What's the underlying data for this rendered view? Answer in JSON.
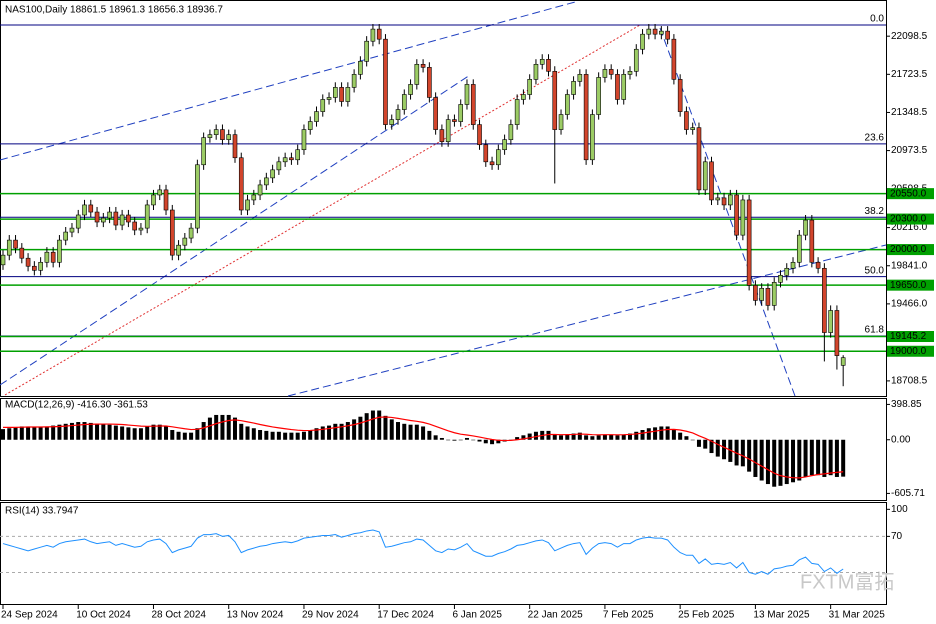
{
  "watermark": "FXTM富拓",
  "chart_data": [
    {
      "type": "candlestick",
      "title": "NAS100,Daily  18861.5 18961.3 18656.3 18936.7",
      "categories": [
        "24 Sep 2024",
        null,
        null,
        null,
        null,
        null,
        null,
        null,
        null,
        null,
        null,
        null,
        "10 Oct 2024",
        null,
        null,
        null,
        null,
        null,
        null,
        null,
        null,
        null,
        null,
        null,
        "28 Oct 2024",
        null,
        null,
        null,
        null,
        null,
        null,
        null,
        null,
        null,
        null,
        null,
        "13 Nov 2024",
        null,
        null,
        null,
        null,
        null,
        null,
        null,
        null,
        null,
        null,
        null,
        "29 Nov 2024",
        null,
        null,
        null,
        null,
        null,
        null,
        null,
        null,
        null,
        null,
        null,
        "17 Dec 2024",
        null,
        null,
        null,
        null,
        null,
        null,
        null,
        null,
        null,
        null,
        null,
        "6 Jan 2025",
        null,
        null,
        null,
        null,
        null,
        null,
        null,
        null,
        null,
        null,
        null,
        "22 Jan 2025",
        null,
        null,
        null,
        null,
        null,
        null,
        null,
        null,
        null,
        null,
        null,
        "7 Feb 2025",
        null,
        null,
        null,
        null,
        null,
        null,
        null,
        null,
        null,
        null,
        null,
        "25 Feb 2025",
        null,
        null,
        null,
        null,
        null,
        null,
        null,
        null,
        null,
        null,
        null,
        "13 Mar 2025",
        null,
        null,
        null,
        null,
        null,
        null,
        null,
        null,
        null,
        null,
        null,
        "31 Mar 2025",
        null,
        null
      ],
      "open": [
        19850,
        19945,
        20093,
        20014,
        19915,
        19836,
        19796,
        19875,
        19974,
        19875,
        20093,
        20172,
        20211,
        20340,
        20439,
        20369,
        20271,
        20310,
        20369,
        20241,
        20340,
        20271,
        20192,
        20211,
        20439,
        20537,
        20587,
        20389,
        19945,
        20043,
        20113,
        20211,
        20834,
        21101,
        21130,
        21180,
        21081,
        21130,
        20903,
        20389,
        20488,
        20537,
        20636,
        20705,
        20784,
        20863,
        20903,
        20883,
        20982,
        21180,
        21259,
        21357,
        21476,
        21496,
        21595,
        21456,
        21595,
        21723,
        21851,
        22049,
        22168,
        22069,
        21229,
        21278,
        21377,
        21525,
        21624,
        21822,
        21792,
        21496,
        21180,
        21061,
        21278,
        21259,
        21427,
        21624,
        21229,
        21031,
        20863,
        20834,
        20982,
        21081,
        21229,
        21476,
        21525,
        21674,
        21822,
        21871,
        21753,
        21180,
        21328,
        21525,
        21654,
        21723,
        20883,
        21328,
        21693,
        21772,
        21723,
        21476,
        21723,
        21753,
        21970,
        22118,
        22168,
        22118,
        22148,
        22069,
        21674,
        21357,
        21180,
        21199,
        20587,
        20863,
        20488,
        20508,
        20439,
        20537,
        20142,
        20488,
        19648,
        19500,
        19619,
        19451,
        19678,
        19747,
        19816,
        19875,
        20142,
        20290,
        19875,
        19816,
        19184,
        19401,
        18861.5
      ],
      "high": [
        19995,
        20143,
        20143,
        20064,
        19965,
        19886,
        19925,
        20024,
        20024,
        20143,
        20222,
        20261,
        20390,
        20489,
        20489,
        20419,
        20360,
        20419,
        20419,
        20390,
        20390,
        20321,
        20261,
        20489,
        20587,
        20637,
        20637,
        20439,
        20093,
        20163,
        20261,
        20884,
        21151,
        21180,
        21230,
        21230,
        21180,
        21180,
        20953,
        20538,
        20587,
        20686,
        20755,
        20834,
        20913,
        20953,
        20953,
        21032,
        21230,
        21309,
        21407,
        21526,
        21546,
        21645,
        21645,
        21645,
        21773,
        21901,
        22099,
        22218,
        22218,
        22119,
        21328,
        21427,
        21575,
        21674,
        21872,
        21872,
        21842,
        21546,
        21230,
        21328,
        21328,
        21477,
        21674,
        21674,
        21279,
        21081,
        20913,
        21032,
        21131,
        21279,
        21526,
        21575,
        21724,
        21872,
        21921,
        21921,
        21803,
        21378,
        21575,
        21704,
        21773,
        21773,
        21378,
        21743,
        21822,
        21822,
        21773,
        21773,
        21803,
        22020,
        22168,
        22218,
        22218,
        22198,
        22198,
        22119,
        21724,
        21407,
        21249,
        21249,
        20913,
        20913,
        20558,
        20558,
        20587,
        20587,
        20538,
        20538,
        19698,
        19669,
        19669,
        19728,
        19797,
        19866,
        19925,
        20192,
        20340,
        20340,
        19925,
        19866,
        19451,
        19451,
        18961.3
      ],
      "low": [
        19800,
        19895,
        19964,
        19865,
        19786,
        19746,
        19746,
        19825,
        19825,
        19825,
        20043,
        20122,
        20161,
        20290,
        20319,
        20221,
        20221,
        20260,
        20191,
        20191,
        20221,
        20142,
        20142,
        20161,
        20389,
        20487,
        20339,
        19895,
        19895,
        19993,
        20063,
        20161,
        20784,
        21051,
        21080,
        21031,
        21031,
        20853,
        20339,
        20339,
        20438,
        20487,
        20586,
        20655,
        20734,
        20813,
        20833,
        20833,
        20932,
        21130,
        21209,
        21307,
        21426,
        21446,
        21406,
        21406,
        21545,
        21673,
        21801,
        21999,
        22019,
        21179,
        21179,
        21228,
        21327,
        21475,
        21574,
        21742,
        21446,
        21130,
        21011,
        21011,
        21209,
        21209,
        21377,
        21179,
        20981,
        20813,
        20784,
        20784,
        20932,
        21031,
        21179,
        21426,
        21475,
        21624,
        21772,
        21703,
        20650,
        21130,
        21278,
        21475,
        21604,
        20833,
        20833,
        21278,
        21643,
        21673,
        21426,
        21426,
        21673,
        21703,
        21920,
        22068,
        22068,
        22068,
        22019,
        21624,
        21307,
        21130,
        21130,
        20537,
        20537,
        20438,
        20438,
        20389,
        20389,
        20092,
        20092,
        19598,
        19450,
        19450,
        19401,
        19401,
        19628,
        19697,
        19766,
        19825,
        20092,
        19825,
        19766,
        18900,
        19134,
        18820,
        18656.3
      ],
      "close": [
        19945,
        20093,
        20014,
        19915,
        19836,
        19796,
        19875,
        19974,
        19875,
        20093,
        20172,
        20211,
        20340,
        20439,
        20369,
        20271,
        20310,
        20369,
        20241,
        20340,
        20271,
        20192,
        20211,
        20439,
        20537,
        20587,
        20389,
        19945,
        20043,
        20113,
        20211,
        20834,
        21101,
        21130,
        21180,
        21081,
        21130,
        20903,
        20389,
        20488,
        20537,
        20636,
        20705,
        20784,
        20863,
        20903,
        20883,
        20982,
        21180,
        21259,
        21357,
        21476,
        21496,
        21595,
        21456,
        21595,
        21723,
        21851,
        22049,
        22168,
        22069,
        21229,
        21278,
        21377,
        21525,
        21624,
        21822,
        21792,
        21496,
        21180,
        21061,
        21278,
        21259,
        21427,
        21624,
        21229,
        21031,
        20863,
        20834,
        20982,
        21081,
        21229,
        21476,
        21525,
        21674,
        21822,
        21871,
        21753,
        21180,
        21328,
        21525,
        21654,
        21723,
        20883,
        21328,
        21693,
        21772,
        21723,
        21476,
        21723,
        21753,
        21970,
        22118,
        22168,
        22118,
        22148,
        22069,
        21674,
        21357,
        21180,
        21199,
        20587,
        20863,
        20488,
        20508,
        20439,
        20537,
        20142,
        20488,
        19648,
        19500,
        19619,
        19451,
        19678,
        19747,
        19816,
        19875,
        20142,
        20290,
        19875,
        19816,
        19184,
        19401,
        18957,
        18936.7
      ],
      "up_color": "#9ccc65",
      "down_color": "#d2452c",
      "ylim": [
        18560,
        22415
      ],
      "yticks": [
        22098.5,
        21723.5,
        21348.5,
        20973.5,
        20598.5,
        {
          "value": 20216,
          "label": "20216.0"
        },
        {
          "value": 19841,
          "label": "19841.0"
        },
        {
          "value": 19466,
          "label": "19466.0"
        },
        18708.5
      ],
      "levels": [
        {
          "value": 20550,
          "label": "20550.0"
        },
        {
          "value": 20300,
          "label": "20300.0"
        },
        {
          "value": 20000,
          "label": "20000.0"
        },
        {
          "value": 19650,
          "label": "19650.0"
        },
        {
          "value": 19145.2,
          "label": "19145.2"
        },
        {
          "value": 19000,
          "label": "19000.0"
        }
      ],
      "level_color": "#00a000",
      "fib_levels": [
        {
          "value": 22208,
          "label": "0.0"
        },
        {
          "value": 21040,
          "label": "23.6"
        },
        {
          "value": 20318,
          "label": "38.2"
        },
        {
          "value": 19734,
          "label": "50.0"
        },
        {
          "value": 19150,
          "label": "61.8"
        }
      ],
      "fib_color": "#000080"
    },
    {
      "type": "bar",
      "title": "MACD(12,26,9) -416.30 -361.53",
      "values": [
        120,
        130,
        140,
        150,
        150,
        140,
        140,
        150,
        160,
        170,
        180,
        190,
        200,
        200,
        190,
        180,
        180,
        170,
        160,
        150,
        140,
        130,
        130,
        150,
        170,
        170,
        150,
        110,
        90,
        80,
        80,
        130,
        200,
        250,
        280,
        280,
        280,
        250,
        180,
        150,
        130,
        110,
        100,
        90,
        90,
        80,
        80,
        80,
        90,
        110,
        130,
        150,
        160,
        180,
        180,
        200,
        230,
        260,
        300,
        330,
        330,
        270,
        230,
        200,
        180,
        170,
        170,
        150,
        100,
        50,
        20,
        0,
        -10,
        0,
        20,
        0,
        -20,
        -40,
        -50,
        -40,
        -20,
        0,
        30,
        50,
        70,
        90,
        100,
        100,
        60,
        50,
        60,
        70,
        80,
        50,
        40,
        50,
        60,
        60,
        50,
        60,
        70,
        90,
        110,
        130,
        140,
        150,
        150,
        120,
        80,
        40,
        0,
        -80,
        -100,
        -150,
        -190,
        -220,
        -250,
        -290,
        -300,
        -360,
        -420,
        -460,
        -500,
        -530,
        -520,
        -500,
        -480,
        -460,
        -420,
        -400,
        -400,
        -420,
        -400,
        -420,
        -416.3
      ],
      "color": "#000000",
      "signal": {
        "color": "#ff0000",
        "values": [
          140,
          140,
          140,
          142,
          144,
          144,
          144,
          145,
          147,
          150,
          154,
          160,
          166,
          172,
          175,
          176,
          177,
          177,
          175,
          172,
          166,
          160,
          154,
          152,
          153,
          155,
          155,
          146,
          135,
          124,
          115,
          118,
          134,
          157,
          182,
          201,
          217,
          224,
          215,
          202,
          188,
          172,
          158,
          145,
          134,
          124,
          115,
          108,
          104,
          105,
          110,
          118,
          126,
          137,
          146,
          157,
          171,
          189,
          211,
          235,
          254,
          257,
          252,
          241,
          229,
          217,
          208,
          196,
          177,
          152,
          126,
          101,
          79,
          63,
          54,
          43,
          30,
          16,
          3,
          -6,
          -9,
          -7,
          0,
          10,
          22,
          36,
          49,
          59,
          59,
          57,
          58,
          60,
          64,
          62,
          57,
          56,
          57,
          57,
          56,
          57,
          60,
          66,
          75,
          86,
          97,
          108,
          116,
          117,
          110,
          96,
          77,
          45,
          16,
          -17,
          -52,
          -85,
          -118,
          -152,
          -182,
          -217,
          -258,
          -298,
          -338,
          -377,
          -405,
          -420,
          -428,
          -430,
          -420,
          -405,
          -392,
          -385,
          -375,
          -368,
          -361.53
        ]
      },
      "ylim": [
        -680,
        460
      ],
      "yticks": [
        398.85,
        {
          "value": 0,
          "label": "0.00"
        },
        -605.71
      ]
    },
    {
      "type": "line",
      "title": "RSI(14) 33.7947",
      "values": [
        62,
        60,
        58,
        56,
        54,
        56,
        58,
        60,
        58,
        62,
        64,
        65,
        66,
        67,
        64,
        62,
        63,
        64,
        60,
        62,
        60,
        58,
        59,
        64,
        66,
        67,
        62,
        52,
        55,
        57,
        59,
        68,
        72,
        72,
        73,
        70,
        71,
        64,
        52,
        55,
        57,
        59,
        60,
        62,
        63,
        64,
        63,
        65,
        68,
        69,
        70,
        71,
        71,
        72,
        69,
        71,
        73,
        74,
        76,
        77,
        75,
        58,
        59,
        61,
        63,
        64,
        67,
        66,
        60,
        54,
        52,
        56,
        55,
        58,
        62,
        54,
        51,
        48,
        48,
        51,
        53,
        56,
        60,
        61,
        63,
        65,
        66,
        63,
        54,
        57,
        60,
        62,
        63,
        50,
        57,
        62,
        63,
        62,
        58,
        62,
        62,
        66,
        68,
        69,
        68,
        68,
        66,
        58,
        52,
        49,
        49,
        40,
        45,
        39,
        40,
        39,
        41,
        35,
        41,
        30,
        28,
        31,
        28,
        34,
        35,
        37,
        38,
        44,
        47,
        40,
        39,
        31,
        35,
        29,
        33.7947
      ],
      "color": "#1e90ff",
      "levels": [
        70,
        30
      ],
      "ylim": [
        -5,
        107
      ],
      "yticks": [
        100,
        70
      ]
    }
  ]
}
